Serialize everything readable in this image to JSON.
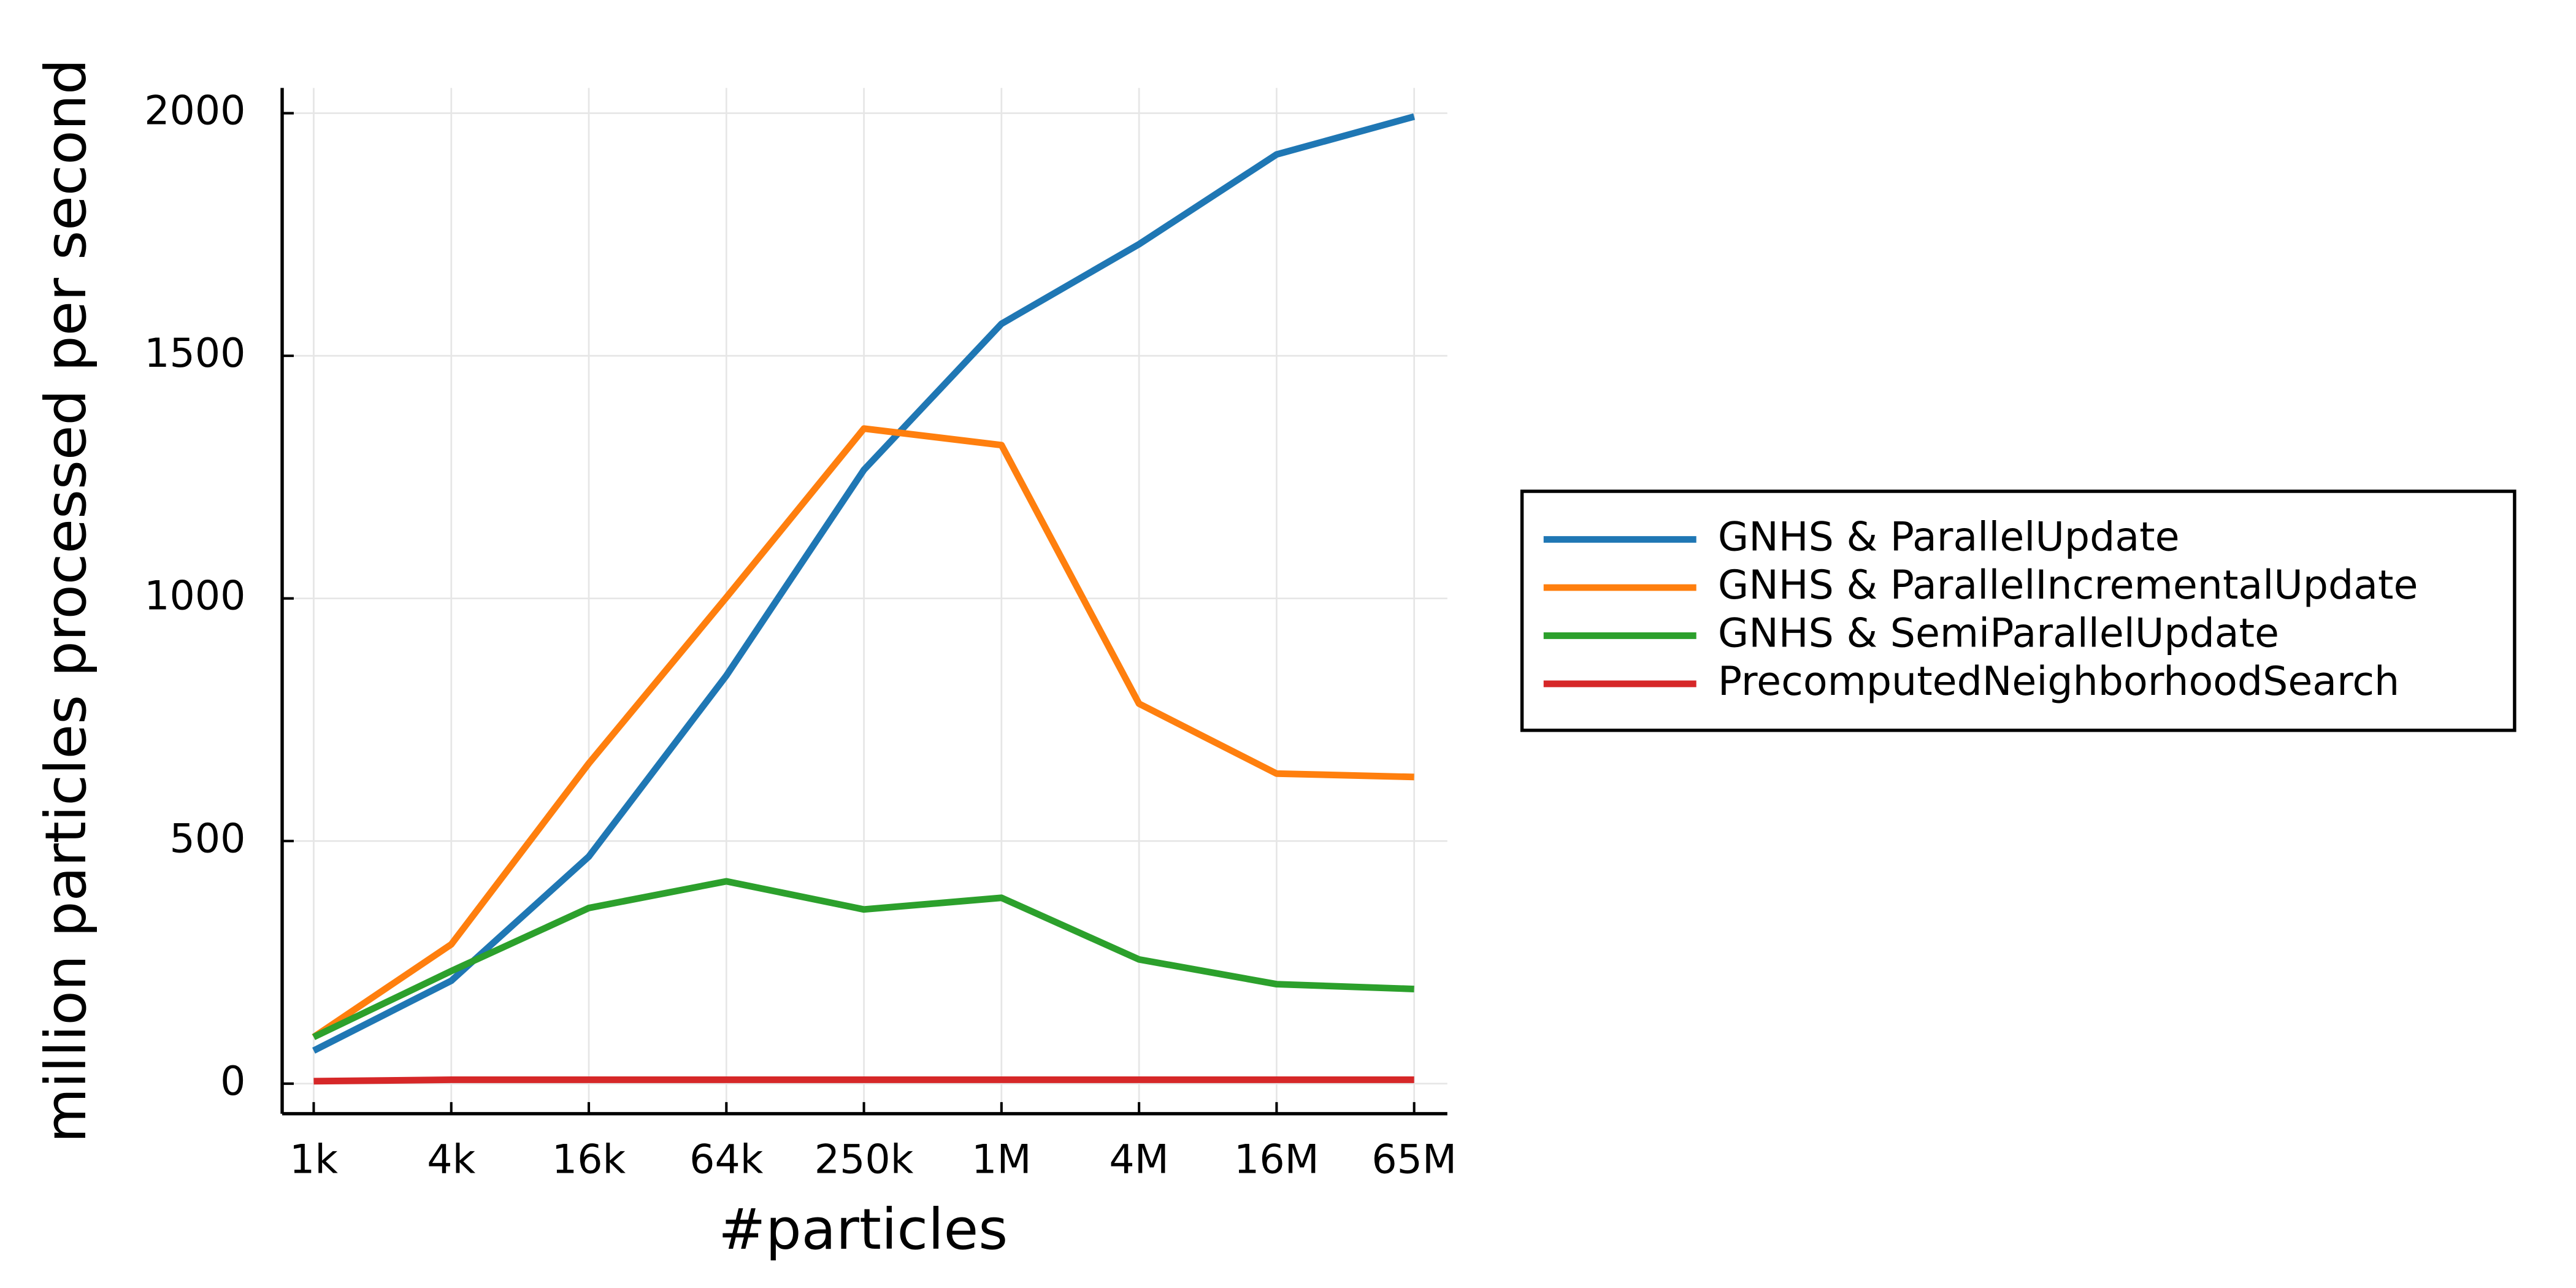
{
  "chart_data": {
    "type": "line",
    "x_label": "#particles",
    "y_label": "million particles processed per second",
    "categories": [
      "1k",
      "4k",
      "16k",
      "64k",
      "250k",
      "1M",
      "4M",
      "16M",
      "65M"
    ],
    "series": [
      {
        "name": "GNHS & ParallelUpdate",
        "color": "#1f77b4",
        "values": [
          68,
          212,
          468,
          841,
          1265,
          1566,
          1730,
          1915,
          1993
        ]
      },
      {
        "name": "GNHS & ParallelIncrementalUpdate",
        "color": "#ff7f0e",
        "values": [
          96,
          287,
          660,
          1002,
          1350,
          1316,
          783,
          639,
          632
        ]
      },
      {
        "name": "GNHS & SemiParallelUpdate",
        "color": "#2ca02c",
        "values": [
          96,
          232,
          362,
          417,
          359,
          383,
          256,
          205,
          195
        ]
      },
      {
        "name": "PrecomputedNeighborhoodSearch",
        "color": "#d62728",
        "values": [
          5,
          8,
          8,
          8,
          8,
          8,
          8,
          8,
          8
        ]
      }
    ],
    "ylim": [
      -62,
      2052
    ],
    "yticks": [
      0,
      500,
      1000,
      1500,
      2000
    ],
    "grid": true,
    "legend": "right"
  }
}
